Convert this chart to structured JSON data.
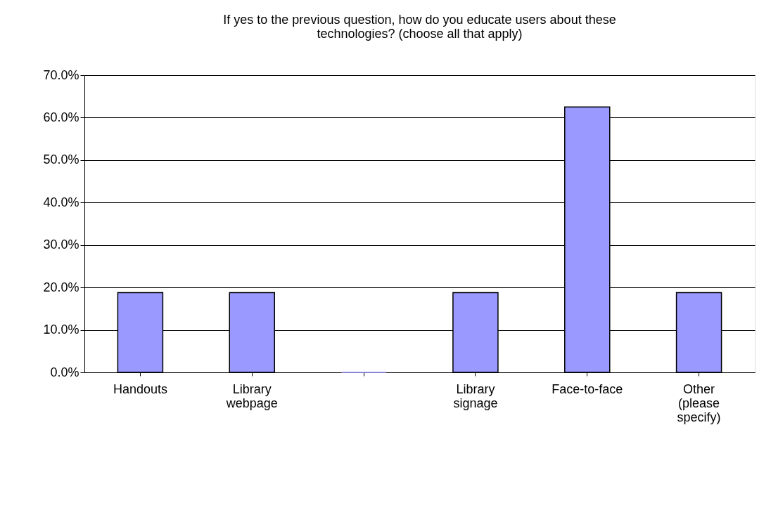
{
  "chart_data": {
    "type": "bar",
    "title": "If yes to the previous question, how do you educate users about these technologies? (choose all that apply)",
    "categories": [
      "Handouts",
      "Library webpage",
      null,
      "Library signage",
      "Face-to-face",
      "Other (please specify)"
    ],
    "values": [
      18.8,
      18.8,
      0,
      18.8,
      62.5,
      18.8
    ],
    "color": "#9999ff",
    "ylim": [
      0,
      70
    ],
    "yticks": [
      {
        "value": 0,
        "label": "0.0%"
      },
      {
        "value": 10,
        "label": "10.0%"
      },
      {
        "value": 20,
        "label": "20.0%"
      },
      {
        "value": 30,
        "label": "30.0%"
      },
      {
        "value": 40,
        "label": "40.0%"
      },
      {
        "value": 50,
        "label": "50.0%"
      },
      {
        "value": 60,
        "label": "60.0%"
      },
      {
        "value": 70,
        "label": "70.0%"
      }
    ],
    "grid": "y"
  }
}
